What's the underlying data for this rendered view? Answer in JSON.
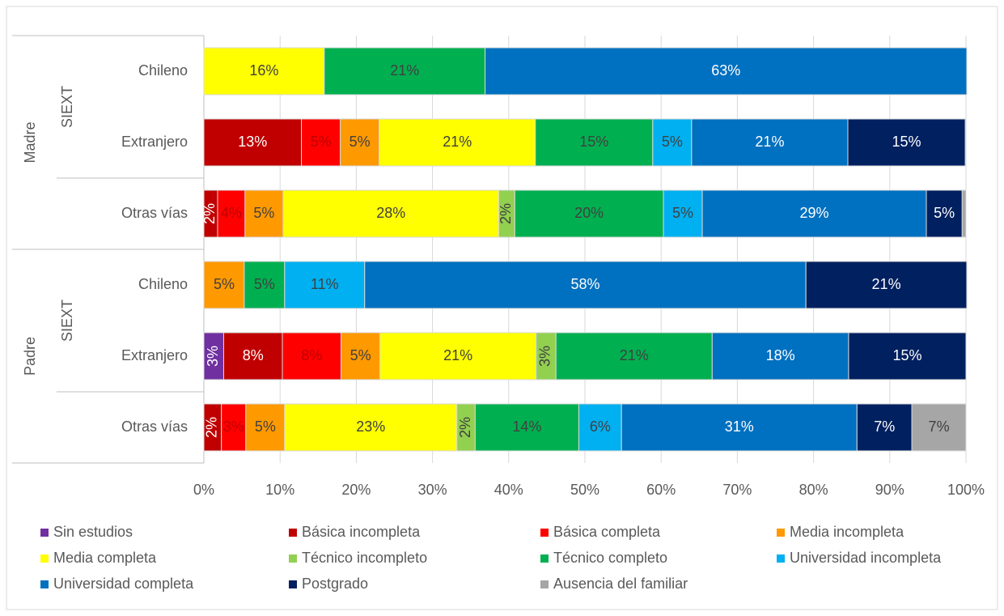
{
  "chart_data": {
    "type": "stacked_bar_horizontal",
    "categories": [
      "Chileno",
      "Extranjero",
      "Otras vías",
      "Chileno",
      "Extranjero",
      "Otras vías"
    ],
    "category_groups": [
      "Madre",
      "Madre",
      "Madre",
      "Padre",
      "Padre",
      "Padre"
    ],
    "category_subgroups": [
      "SIEXT",
      "SIEXT",
      null,
      "SIEXT",
      "SIEXT",
      null
    ],
    "series": [
      {
        "name": "Sin estudios",
        "color": "#7030a0",
        "label_color": "#ffffff",
        "values": [
          0,
          0,
          0,
          0,
          2.6,
          0
        ],
        "value_labels": [
          null,
          null,
          null,
          null,
          "3%",
          null
        ]
      },
      {
        "name": "Básica incompleta",
        "color": "#c00000",
        "label_color": "#ffffff",
        "values": [
          0,
          12.8,
          1.8,
          0,
          7.7,
          2.3
        ],
        "value_labels": [
          null,
          "13%",
          "2%",
          null,
          "8%",
          "2%"
        ]
      },
      {
        "name": "Básica completa",
        "color": "#ff0000",
        "label_color": "#c00000",
        "values": [
          0,
          5.1,
          3.6,
          0,
          7.7,
          3.2
        ],
        "value_labels": [
          null,
          "5%",
          "4%",
          null,
          "8%",
          "3%"
        ]
      },
      {
        "name": "Media incompleta",
        "color": "#ff9900",
        "label_color": "#404040",
        "values": [
          0,
          5.1,
          5.0,
          5.3,
          5.1,
          5.1
        ],
        "value_labels": [
          null,
          "5%",
          "5%",
          "5%",
          "5%",
          "5%"
        ]
      },
      {
        "name": "Media completa",
        "color": "#ffff00",
        "label_color": "#404040",
        "values": [
          15.8,
          20.5,
          28.3,
          0,
          20.5,
          22.6
        ],
        "value_labels": [
          "16%",
          "21%",
          "28%",
          null,
          "21%",
          "23%"
        ]
      },
      {
        "name": "Técnico incompleto",
        "color": "#92d050",
        "label_color": "#404040",
        "values": [
          0,
          0,
          2.1,
          0,
          2.6,
          2.4
        ],
        "value_labels": [
          null,
          null,
          "2%",
          null,
          "3%",
          "2%"
        ]
      },
      {
        "name": "Técnico completo",
        "color": "#00b050",
        "label_color": "#404040",
        "values": [
          21.1,
          15.4,
          19.5,
          5.3,
          20.5,
          13.6
        ],
        "value_labels": [
          "21%",
          "15%",
          "20%",
          "5%",
          "21%",
          "14%"
        ]
      },
      {
        "name": "Universidad incompleta",
        "color": "#00b0f0",
        "label_color": "#404040",
        "values": [
          0,
          5.1,
          5.1,
          10.5,
          0,
          5.6
        ],
        "value_labels": [
          null,
          "5%",
          "5%",
          "11%",
          null,
          "6%"
        ]
      },
      {
        "name": "Universidad completa",
        "color": "#0070c0",
        "label_color": "#ffffff",
        "values": [
          63.2,
          20.5,
          29.4,
          57.9,
          17.9,
          30.9
        ],
        "value_labels": [
          "63%",
          "21%",
          "29%",
          "58%",
          "18%",
          "31%"
        ]
      },
      {
        "name": "Postgrado",
        "color": "#002060",
        "label_color": "#ffffff",
        "values": [
          0,
          15.4,
          4.7,
          21.1,
          15.4,
          7.2
        ],
        "value_labels": [
          null,
          "15%",
          "5%",
          "21%",
          "15%",
          "7%"
        ]
      },
      {
        "name": "Ausencia del familiar",
        "color": "#a6a6a6",
        "label_color": "#404040",
        "values": [
          0,
          0,
          0.5,
          0,
          0,
          7.1
        ],
        "value_labels": [
          null,
          null,
          null,
          null,
          null,
          "7%"
        ]
      }
    ],
    "xlim": [
      0,
      100
    ],
    "xticks": [
      {
        "value": 0,
        "label": "0%"
      },
      {
        "value": 10,
        "label": "10%"
      },
      {
        "value": 20,
        "label": "20%"
      },
      {
        "value": 30,
        "label": "30%"
      },
      {
        "value": 40,
        "label": "40%"
      },
      {
        "value": 50,
        "label": "50%"
      },
      {
        "value": 60,
        "label": "60%"
      },
      {
        "value": 70,
        "label": "70%"
      },
      {
        "value": 80,
        "label": "80%"
      },
      {
        "value": 90,
        "label": "90%"
      },
      {
        "value": 100,
        "label": "100%"
      }
    ],
    "grid": true
  }
}
